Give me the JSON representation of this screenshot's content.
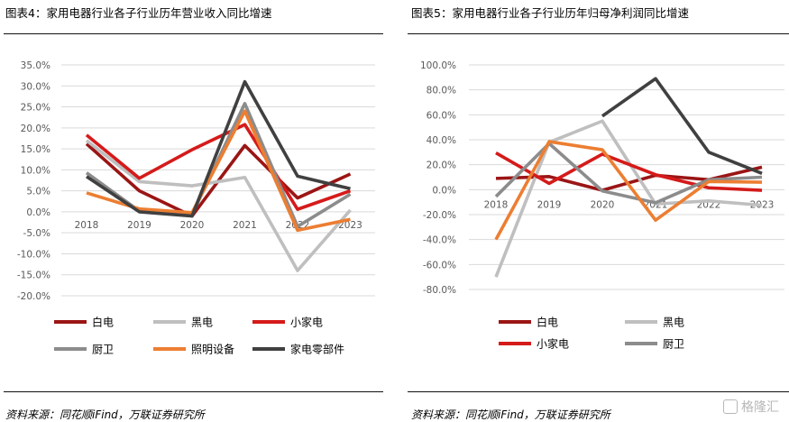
{
  "titles": {
    "left": "图表4：家用电器行业各子行业历年营业收入同比增速",
    "right": "图表5：家用电器行业各子行业历年归母净利润同比增速"
  },
  "sources": {
    "left": "资料来源：同花顺iFind，万联证券研究所",
    "right": "资料来源：同花顺iFind，万联证券研究所"
  },
  "watermark": "格隆汇",
  "chart_data": [
    {
      "type": "line",
      "title": "图表4：家用电器行业各子行业历年营业收入同比增速",
      "x": [
        "2018",
        "2019",
        "2020",
        "2021",
        "2022",
        "2023"
      ],
      "ylim": [
        -20,
        35
      ],
      "yticks": [
        35,
        30,
        25,
        20,
        15,
        10,
        5,
        0,
        -5,
        -10,
        -15,
        -20
      ],
      "ytick_labels": [
        "35.0%",
        "30.0%",
        "25.0%",
        "20.0%",
        "15.0%",
        "10.0%",
        "5.0%",
        "0.0%",
        "-5.0%",
        "-10.0%",
        "-15.0%",
        "-20.0%"
      ],
      "grid": true,
      "legend": "bottom",
      "series": [
        {
          "name": "白电",
          "color": "#9b1515",
          "values": [
            16.2,
            5.0,
            -1.0,
            15.8,
            3.3,
            9.0
          ]
        },
        {
          "name": "黑电",
          "color": "#bfbfbf",
          "values": [
            17.0,
            7.2,
            6.2,
            8.2,
            -14.0,
            0.4
          ]
        },
        {
          "name": "小家电",
          "color": "#d51a1a",
          "values": [
            18.3,
            8.0,
            14.8,
            20.8,
            0.6,
            5.0
          ]
        },
        {
          "name": "厨卫",
          "color": "#8c8c8c",
          "values": [
            9.3,
            0.2,
            -0.6,
            25.8,
            -3.5,
            4.2
          ]
        },
        {
          "name": "照明设备",
          "color": "#ec7e32",
          "values": [
            4.5,
            0.7,
            -0.2,
            24.0,
            -4.4,
            -1.8
          ]
        },
        {
          "name": "家电零部件",
          "color": "#404040",
          "values": [
            8.4,
            0.0,
            -1.0,
            31.0,
            8.5,
            5.5
          ]
        }
      ]
    },
    {
      "type": "line",
      "title": "图表5：家用电器行业各子行业历年归母净利润同比增速",
      "x": [
        "2018",
        "2019",
        "2020",
        "2021",
        "2022",
        "2023"
      ],
      "ylim": [
        -80,
        100
      ],
      "yticks": [
        100,
        80,
        60,
        40,
        20,
        0,
        -20,
        -40,
        -60,
        -80
      ],
      "ytick_labels": [
        "100.0%",
        "80.0%",
        "60.0%",
        "40.0%",
        "20.0%",
        "0.0%",
        "-20.0%",
        "-40.0%",
        "-60.0%",
        "-80.0%"
      ],
      "grid": true,
      "legend": "bottom",
      "series": [
        {
          "name": "白电",
          "color": "#9b1515",
          "values": [
            9.0,
            10.5,
            -0.5,
            11.5,
            8.0,
            18.0
          ]
        },
        {
          "name": "黑电",
          "color": "#bfbfbf",
          "values": [
            -70.0,
            38.0,
            55.0,
            -11.5,
            -9.0,
            -12.5
          ]
        },
        {
          "name": "小家电",
          "color": "#d51a1a",
          "values": [
            29.5,
            5.0,
            28.5,
            12.0,
            1.5,
            -0.5
          ]
        },
        {
          "name": "厨卫",
          "color": "#8c8c8c",
          "values": [
            -5.5,
            37.0,
            -1.0,
            -10.5,
            8.0,
            10.0
          ]
        },
        {
          "name": "照明设备",
          "color": "#ec7e32",
          "values": [
            -40.0,
            38.5,
            32.0,
            -24.5,
            6.5,
            6.0
          ]
        },
        {
          "name": "家电零部件",
          "color": "#404040",
          "values": [
            null,
            null,
            59.0,
            89.0,
            30.0,
            13.0
          ]
        }
      ],
      "legend_series": [
        "白电",
        "黑电",
        "小家电",
        "厨卫"
      ]
    }
  ]
}
